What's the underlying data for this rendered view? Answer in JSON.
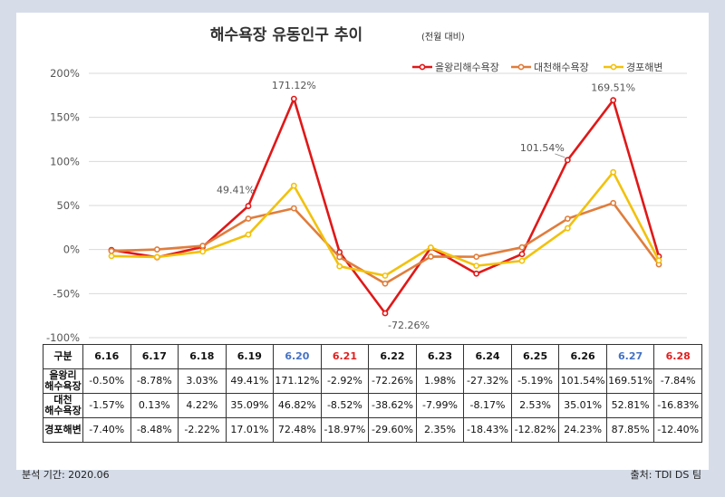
{
  "chart_data": {
    "type": "line",
    "title": "해수욕장 유동인구 추이",
    "subtitle": "(전월 대비)",
    "categories": [
      "6.16",
      "6.17",
      "6.18",
      "6.19",
      "6.20",
      "6.21",
      "6.22",
      "6.23",
      "6.24",
      "6.25",
      "6.26",
      "6.27",
      "6.28"
    ],
    "category_colors": [
      "#111111",
      "#111111",
      "#111111",
      "#111111",
      "#4472c4",
      "#e02020",
      "#111111",
      "#111111",
      "#111111",
      "#111111",
      "#111111",
      "#4472c4",
      "#e02020"
    ],
    "ylim": [
      -100,
      200
    ],
    "yticks": [
      -100,
      -50,
      0,
      50,
      100,
      150,
      200
    ],
    "ytick_labels": [
      "-100%",
      "-50%",
      "0%",
      "50%",
      "100%",
      "150%",
      "200%"
    ],
    "grid": true,
    "legend_position": "top-right",
    "series": [
      {
        "name": "을왕리해수욕장",
        "color": "#e01818",
        "values": [
          -0.5,
          -8.78,
          3.03,
          49.41,
          171.12,
          -2.92,
          -72.26,
          1.98,
          -27.32,
          -5.19,
          101.54,
          169.51,
          -7.84
        ]
      },
      {
        "name": "대천해수욕장",
        "color": "#e07d3c",
        "values": [
          -1.57,
          0.13,
          4.22,
          35.09,
          46.82,
          -8.52,
          -38.62,
          -7.99,
          -8.17,
          2.53,
          35.01,
          52.81,
          -16.83
        ]
      },
      {
        "name": "경포해변",
        "color": "#f2c10c",
        "values": [
          -7.4,
          -8.48,
          -2.22,
          17.01,
          72.48,
          -18.97,
          -29.6,
          2.35,
          -18.43,
          -12.82,
          24.23,
          87.85,
          -12.4
        ]
      }
    ],
    "annotations": [
      {
        "text": "49.41%",
        "series": 0,
        "index": 3
      },
      {
        "text": "171.12%",
        "series": 0,
        "index": 4
      },
      {
        "text": "-72.26%",
        "series": 0,
        "index": 6
      },
      {
        "text": "101.54%",
        "series": 0,
        "index": 10
      },
      {
        "text": "169.51%",
        "series": 0,
        "index": 11
      }
    ]
  },
  "table": {
    "header_label": "구분",
    "rows": [
      {
        "label_lines": [
          "을왕리",
          "해수욕장"
        ],
        "cells": [
          "-0.50%",
          "-8.78%",
          "3.03%",
          "49.41%",
          "171.12%",
          "-2.92%",
          "-72.26%",
          "1.98%",
          "-27.32%",
          "-5.19%",
          "101.54%",
          "169.51%",
          "-7.84%"
        ]
      },
      {
        "label_lines": [
          "대천",
          "해수욕장"
        ],
        "cells": [
          "-1.57%",
          "0.13%",
          "4.22%",
          "35.09%",
          "46.82%",
          "-8.52%",
          "-38.62%",
          "-7.99%",
          "-8.17%",
          "2.53%",
          "35.01%",
          "52.81%",
          "-16.83%"
        ]
      },
      {
        "label_lines": [
          "경포해변"
        ],
        "cells": [
          "-7.40%",
          "-8.48%",
          "-2.22%",
          "17.01%",
          "72.48%",
          "-18.97%",
          "-29.60%",
          "2.35%",
          "-18.43%",
          "-12.82%",
          "24.23%",
          "87.85%",
          "-12.40%"
        ]
      }
    ]
  },
  "footer": {
    "left": "분석 기간: 2020.06",
    "right": "출처: TDI DS 팀"
  }
}
